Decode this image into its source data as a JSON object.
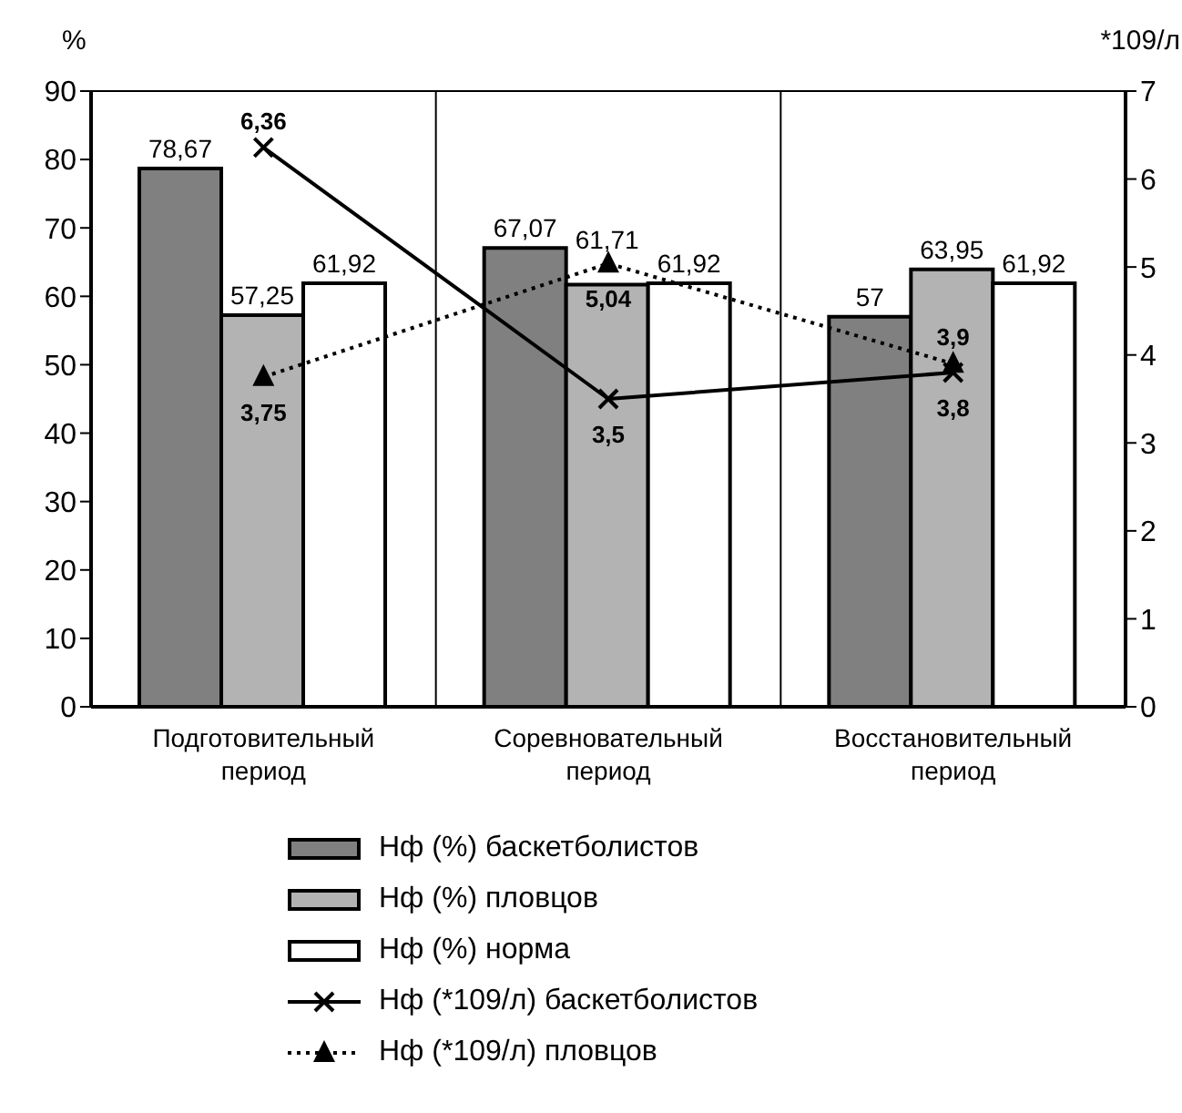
{
  "chart_data": {
    "type": "bar",
    "ylabel": "%",
    "y2label": "*109/л",
    "categories": [
      "Подготовительный период",
      "Соревновательный период",
      "Восстановительный период"
    ],
    "series": [
      {
        "name": "Нф (%) баскетболистов",
        "color": "#808080",
        "values": [
          78.67,
          67.07,
          57
        ],
        "value_labels": [
          "78,67",
          "67,07",
          "57"
        ]
      },
      {
        "name": "Нф (%) пловцов",
        "color": "#b3b3b3",
        "values": [
          57.25,
          61.71,
          63.95
        ],
        "value_labels": [
          "57,25",
          "61,71",
          "63,95"
        ]
      },
      {
        "name": "Нф (%) норма",
        "color": "#ffffff",
        "values": [
          61.92,
          61.92,
          61.92
        ],
        "value_labels": [
          "61,92",
          "61,92",
          "61,92"
        ]
      },
      {
        "name": "Нф (*109/л) баскетболистов",
        "type": "line",
        "axis": "y2",
        "color": "#000000",
        "marker": "cross",
        "line_style": "solid",
        "values": [
          6.36,
          3.5,
          3.8
        ],
        "value_labels": [
          "6,36",
          "3,5",
          "3,8"
        ]
      },
      {
        "name": "Нф (*109/л) пловцов",
        "type": "line",
        "axis": "y2",
        "color": "#000000",
        "marker": "triangle",
        "line_style": "dotted",
        "values": [
          3.75,
          5.04,
          3.9
        ],
        "value_labels": [
          "3,75",
          "5,04",
          "3,9"
        ]
      }
    ],
    "ylim": [
      0,
      90
    ],
    "yticks": [
      0,
      10,
      20,
      30,
      40,
      50,
      60,
      70,
      80,
      90
    ],
    "y2lim": [
      0,
      7
    ],
    "y2ticks": [
      0,
      1,
      2,
      3,
      4,
      5,
      6,
      7
    ],
    "grid": "x",
    "legend": "bottom"
  }
}
